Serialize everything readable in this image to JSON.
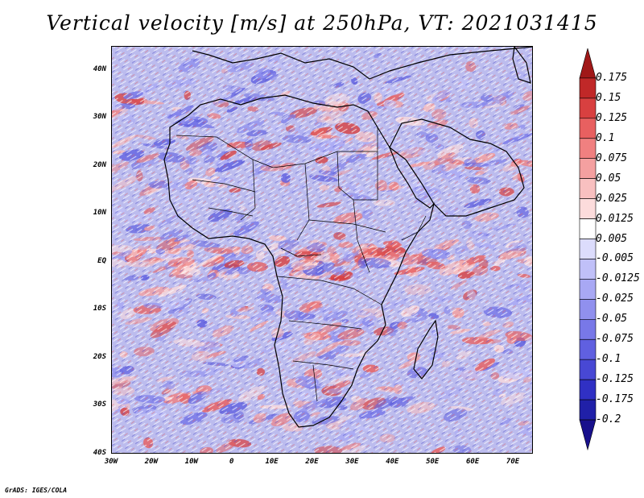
{
  "title": "Vertical velocity [m/s] at 250hPa, VT: 2021031415",
  "footer": "GrADS: IGES/COLA",
  "map": {
    "lon_range": [
      -30,
      75
    ],
    "lat_range": [
      -40,
      45
    ],
    "lat_ticks": [
      {
        "value": 40,
        "label": "40N"
      },
      {
        "value": 30,
        "label": "30N"
      },
      {
        "value": 20,
        "label": "20N"
      },
      {
        "value": 10,
        "label": "10N"
      },
      {
        "value": 0,
        "label": "EQ"
      },
      {
        "value": -10,
        "label": "10S"
      },
      {
        "value": -20,
        "label": "20S"
      },
      {
        "value": -30,
        "label": "30S"
      },
      {
        "value": -40,
        "label": "40S"
      }
    ],
    "lon_ticks": [
      {
        "value": -30,
        "label": "30W"
      },
      {
        "value": -20,
        "label": "20W"
      },
      {
        "value": -10,
        "label": "10W"
      },
      {
        "value": 0,
        "label": "0"
      },
      {
        "value": 10,
        "label": "10E"
      },
      {
        "value": 20,
        "label": "20E"
      },
      {
        "value": 30,
        "label": "30E"
      },
      {
        "value": 40,
        "label": "40E"
      },
      {
        "value": 50,
        "label": "50E"
      },
      {
        "value": 60,
        "label": "60E"
      },
      {
        "value": 70,
        "label": "70E"
      }
    ]
  },
  "colorbar": {
    "levels": [
      "0.175",
      "0.15",
      "0.125",
      "0.1",
      "0.075",
      "0.05",
      "0.025",
      "0.0125",
      "0.005",
      "-0.005",
      "-0.0125",
      "-0.025",
      "-0.05",
      "-0.075",
      "-0.1",
      "-0.125",
      "-0.175",
      "-0.2"
    ],
    "colors": [
      "#a01818",
      "#c02828",
      "#d84040",
      "#e86060",
      "#f08080",
      "#f4a0a0",
      "#f8c0c0",
      "#fcdcdc",
      "#ffffff",
      "#dcdcfc",
      "#c0c0f8",
      "#a8a8f4",
      "#9090ee",
      "#7878e8",
      "#6060e0",
      "#4848d4",
      "#3030c4",
      "#2020a8",
      "#18108c"
    ]
  }
}
